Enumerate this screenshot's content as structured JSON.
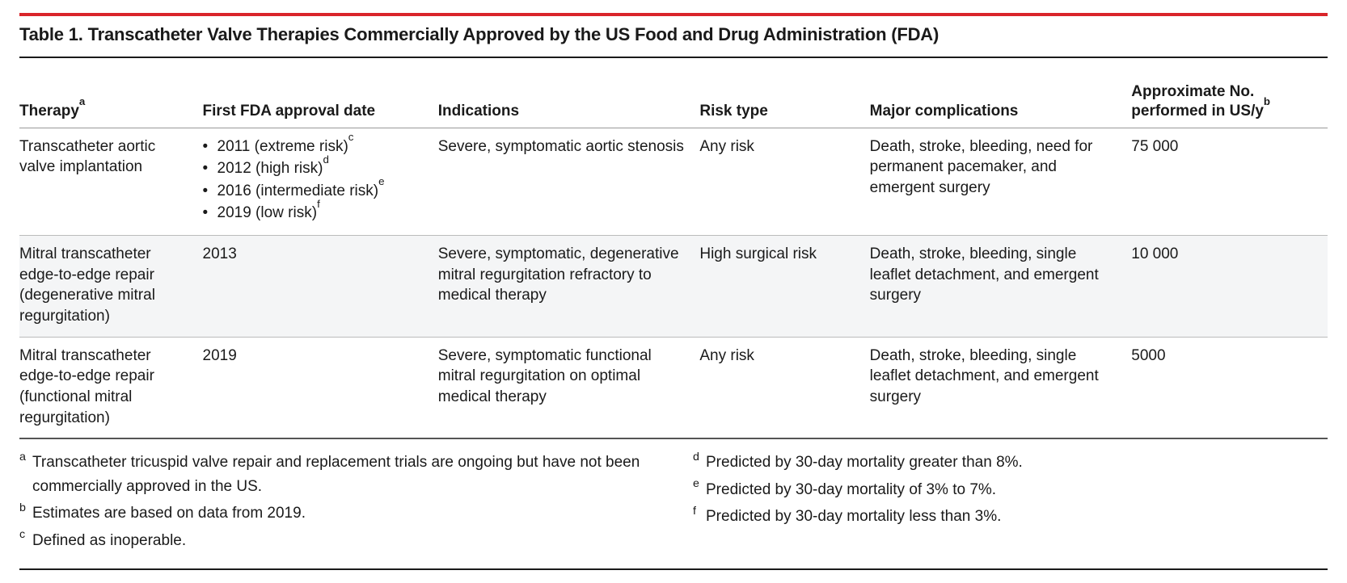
{
  "title": "Table 1. Transcatheter Valve Therapies Commercially Approved by the US Food and Drug Administration (FDA)",
  "colors": {
    "accent_rule": "#d9252a",
    "text": "#1a1a1a",
    "rule_heavy": "#1a1a1a",
    "rule_light": "#bbbbbb",
    "zebra_bg": "#f4f5f6",
    "background": "#ffffff"
  },
  "typography": {
    "base_pt": 14,
    "title_pt": 16,
    "family": "Helvetica Neue / Arial sans-serif",
    "weight_header": 700,
    "weight_body": 400
  },
  "columns": [
    {
      "key": "therapy",
      "label": "Therapy",
      "sup": "a"
    },
    {
      "key": "approval",
      "label": "First FDA approval date",
      "sup": ""
    },
    {
      "key": "indications",
      "label": "Indications",
      "sup": ""
    },
    {
      "key": "risk",
      "label": "Risk type",
      "sup": ""
    },
    {
      "key": "complications",
      "label": "Major complications",
      "sup": ""
    },
    {
      "key": "count",
      "label": "Approximate No. performed in US/y",
      "sup": "b"
    }
  ],
  "rows": [
    {
      "therapy": "Transcatheter aortic valve implantation",
      "approval_type": "list",
      "approval_list": [
        {
          "text": "2011 (extreme risk)",
          "sup": "c"
        },
        {
          "text": "2012 (high risk)",
          "sup": "d"
        },
        {
          "text": "2016 (intermediate risk)",
          "sup": "e"
        },
        {
          "text": "2019 (low risk)",
          "sup": "f"
        }
      ],
      "indications": "Severe, symptomatic aortic stenosis",
      "risk": "Any risk",
      "complications": "Death, stroke, bleeding, need for permanent pacemaker, and emergent surgery",
      "count": "75 000"
    },
    {
      "therapy": "Mitral transcatheter edge-to-edge repair (degenerative mitral regurgitation)",
      "approval_type": "text",
      "approval_text": "2013",
      "indications": "Severe, symptomatic, degenerative mitral regurgitation refractory to medical therapy",
      "risk": "High surgical risk",
      "complications": "Death, stroke, bleeding, single leaflet detachment, and emergent surgery",
      "count": "10 000"
    },
    {
      "therapy": "Mitral transcatheter edge-to-edge repair (functional mitral regurgitation)",
      "approval_type": "text",
      "approval_text": "2019",
      "indications": "Severe, symptomatic functional mitral regurgitation on optimal medical therapy",
      "risk": "Any risk",
      "complications": "Death, stroke, bleeding, single leaflet detachment, and emergent surgery",
      "count": "5000"
    }
  ],
  "footnotes_left": [
    {
      "mark": "a",
      "text": "Transcatheter tricuspid valve repair and replacement trials are ongoing but have not been commercially approved in the US."
    },
    {
      "mark": "b",
      "text": "Estimates are based on data from 2019."
    },
    {
      "mark": "c",
      "text": "Defined as inoperable."
    }
  ],
  "footnotes_right": [
    {
      "mark": "d",
      "text": "Predicted by 30-day mortality greater than 8%."
    },
    {
      "mark": "e",
      "text": "Predicted by 30-day mortality of 3% to 7%."
    },
    {
      "mark": "f",
      "text": "Predicted by 30-day mortality less than 3%."
    }
  ]
}
